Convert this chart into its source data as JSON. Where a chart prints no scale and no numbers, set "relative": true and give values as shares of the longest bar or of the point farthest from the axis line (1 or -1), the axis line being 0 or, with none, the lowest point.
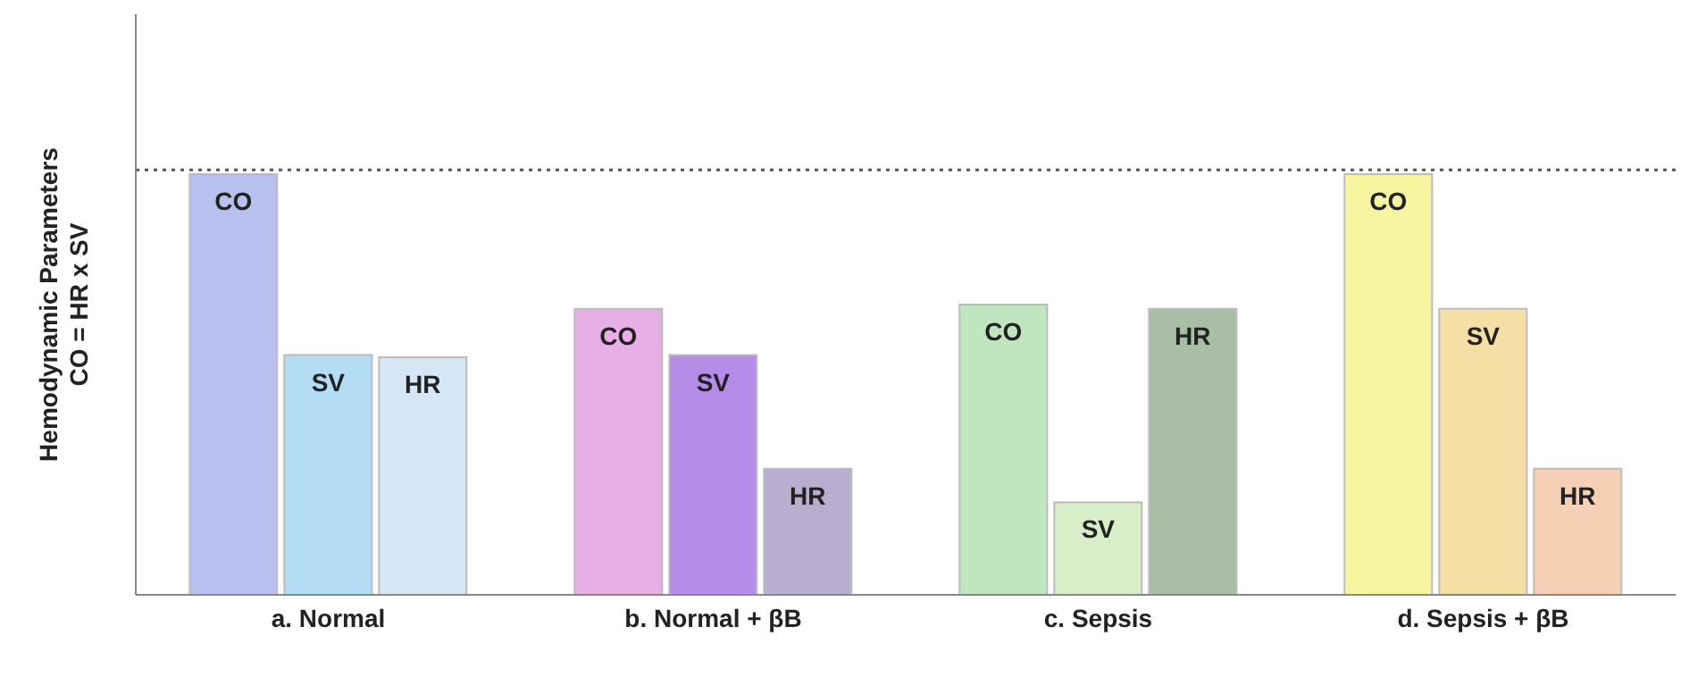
{
  "chart_data": {
    "type": "bar",
    "relative": true,
    "ylabel": "Hemodynamic Parameters\nCO = HR x SV",
    "categories": [
      "a. Normal",
      "b. Normal + βB",
      "c. Sepsis",
      "d. Sepsis + βB"
    ],
    "series": [
      {
        "name": "CO",
        "colors": [
          "#b7c0ee",
          "#e6b0e6",
          "#bfe6bf",
          "#f8f5a0"
        ],
        "values": [
          1,
          0.68,
          0.69,
          1
        ]
      },
      {
        "name": "SV",
        "colors": [
          "#b5dcf5",
          "#b58ce8",
          "#d8eec8",
          "#f5dfa5"
        ],
        "values": [
          0.57,
          0.57,
          0.22,
          0.68
        ]
      },
      {
        "name": "HR",
        "colors": [
          "#d5e6f5",
          "#b8aed0",
          "#a8bfa5",
          "#f5d0b5"
        ],
        "values": [
          0.565,
          0.3,
          0.68,
          0.3
        ]
      }
    ],
    "ref_lines": [
      {
        "axis": "y",
        "value": 1.01,
        "line_style": "dotted",
        "color": "#555555"
      }
    ],
    "legend": false,
    "grid": false
  }
}
